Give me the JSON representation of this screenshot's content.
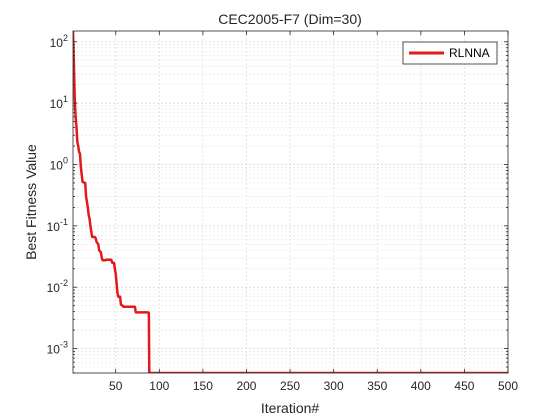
{
  "chart_data": {
    "type": "line",
    "title": "CEC2005-F7 (Dim=30)",
    "xlabel": "Iteration#",
    "ylabel": "Best Fitness Value",
    "xlim": [
      1,
      500
    ],
    "ylim": [
      0.0004,
      150
    ],
    "yscale": "log",
    "grid": true,
    "legend_position": "top-right",
    "x_ticks": [
      "50",
      "100",
      "150",
      "200",
      "250",
      "300",
      "350",
      "400",
      "450",
      "500"
    ],
    "y_ticks": [
      {
        "base": "10",
        "exp": "-3",
        "value": 0.001
      },
      {
        "base": "10",
        "exp": "-2",
        "value": 0.01
      },
      {
        "base": "10",
        "exp": "-1",
        "value": 0.1
      },
      {
        "base": "10",
        "exp": "0",
        "value": 1
      },
      {
        "base": "10",
        "exp": "1",
        "value": 10
      },
      {
        "base": "10",
        "exp": "2",
        "value": 100
      }
    ],
    "series": [
      {
        "name": "RLNNA",
        "color": "#e31a1c",
        "points": [
          [
            1,
            150
          ],
          [
            2,
            45
          ],
          [
            3,
            12
          ],
          [
            4,
            6
          ],
          [
            5,
            4
          ],
          [
            6,
            2.3
          ],
          [
            7,
            2.0
          ],
          [
            8,
            1.6
          ],
          [
            9,
            1.5
          ],
          [
            10,
            0.9
          ],
          [
            12,
            0.52
          ],
          [
            15,
            0.5
          ],
          [
            16,
            0.3
          ],
          [
            18,
            0.2
          ],
          [
            19,
            0.15
          ],
          [
            20,
            0.13
          ],
          [
            21,
            0.1
          ],
          [
            22,
            0.08
          ],
          [
            23,
            0.066
          ],
          [
            26,
            0.066
          ],
          [
            27,
            0.063
          ],
          [
            28,
            0.055
          ],
          [
            30,
            0.05
          ],
          [
            31,
            0.04
          ],
          [
            33,
            0.037
          ],
          [
            34,
            0.03
          ],
          [
            35,
            0.0275
          ],
          [
            38,
            0.0275
          ],
          [
            39,
            0.028
          ],
          [
            45,
            0.028
          ],
          [
            46,
            0.025
          ],
          [
            48,
            0.025
          ],
          [
            49,
            0.02
          ],
          [
            50,
            0.0165
          ],
          [
            51,
            0.0115
          ],
          [
            52,
            0.008
          ],
          [
            53,
            0.007
          ],
          [
            55,
            0.007
          ],
          [
            56,
            0.0052
          ],
          [
            58,
            0.005
          ],
          [
            59,
            0.0048
          ],
          [
            72,
            0.0048
          ],
          [
            73,
            0.0039
          ],
          [
            87,
            0.0039
          ],
          [
            88,
            0.0038
          ],
          [
            88.5,
            0.0004
          ],
          [
            500,
            0.0004
          ]
        ]
      }
    ]
  }
}
